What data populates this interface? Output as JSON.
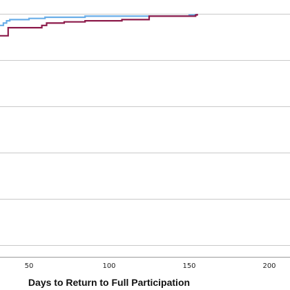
{
  "chart_data": {
    "type": "line",
    "title": "",
    "xlabel": "Days to Return to Full Participation",
    "ylabel": "",
    "x_ticks": [
      50,
      100,
      150,
      200
    ],
    "x_range": [
      32,
      220
    ],
    "y_range": [
      0,
      1.0
    ],
    "grid": "horizontal",
    "legend": "none",
    "series": [
      {
        "color": "#6aaee8",
        "step": true,
        "x": [
          32,
          34,
          36,
          38,
          50,
          60,
          85,
          150,
          154
        ],
        "y": [
          0.95,
          0.96,
          0.97,
          0.975,
          0.98,
          0.985,
          0.99,
          0.995,
          1.0
        ]
      },
      {
        "color": "#8c1a4a",
        "step": true,
        "x": [
          32,
          37,
          58,
          61,
          72,
          85,
          108,
          125,
          154,
          155
        ],
        "y": [
          0.905,
          0.94,
          0.95,
          0.96,
          0.965,
          0.97,
          0.975,
          0.99,
          0.995,
          1.0
        ]
      }
    ]
  }
}
